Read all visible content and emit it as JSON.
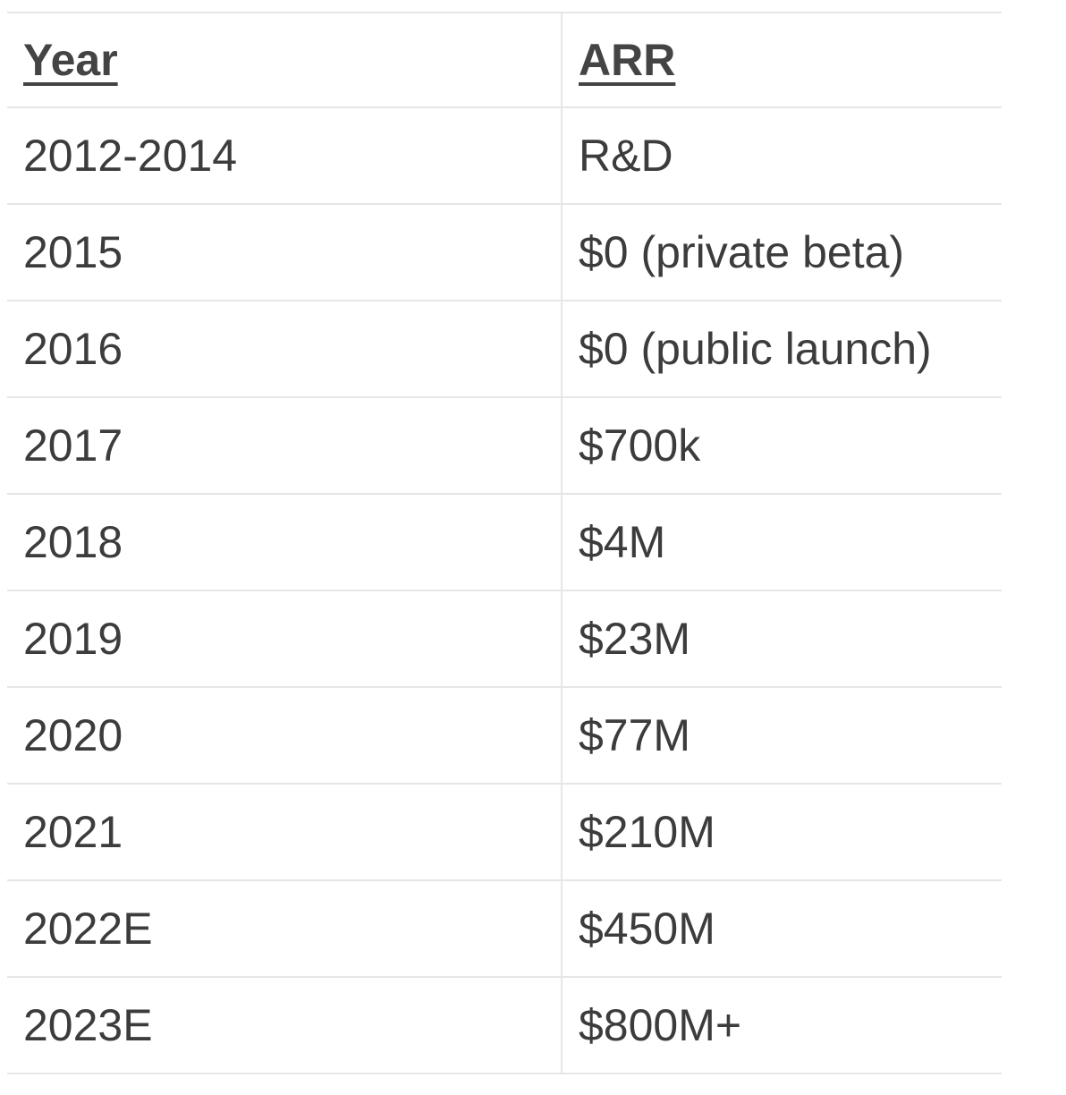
{
  "table": {
    "headers": [
      "Year",
      "ARR"
    ],
    "rows": [
      [
        "2012-2014",
        "R&D"
      ],
      [
        "2015",
        "$0 (private beta)"
      ],
      [
        "2016",
        "$0 (public launch)"
      ],
      [
        "2017",
        "$700k"
      ],
      [
        "2018",
        "$4M"
      ],
      [
        "2019",
        "$23M"
      ],
      [
        "2020",
        "$77M"
      ],
      [
        "2021",
        "$210M"
      ],
      [
        "2022E",
        "$450M"
      ],
      [
        "2023E",
        "$800M+"
      ]
    ]
  },
  "colors": {
    "text": "#3c3c3c",
    "border": "#e6e6e6",
    "background": "#ffffff"
  }
}
